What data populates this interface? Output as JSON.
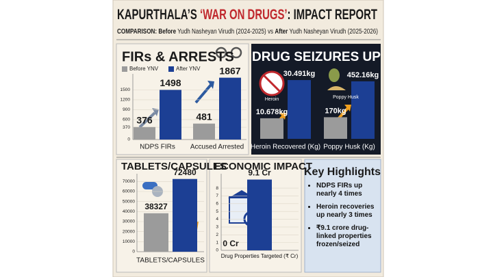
{
  "title_parts": [
    "KAPURTHALA’S ",
    "‘WAR ON DRUGS’",
    ": IMPACT REPORT"
  ],
  "subtitle_parts": [
    "COMPARISON:",
    " Before",
    " Yudh Nasheyan Virudh (2024-2025) vs ",
    "After",
    " Yudh Nasheyan Virudh (2025-2026)"
  ],
  "chart_data": [
    {
      "type": "bar",
      "title": "FIRs & ARRESTS",
      "categories": [
        "NDPS FIRs",
        "Accused Arrested"
      ],
      "series": [
        {
          "name": "Before YNV",
          "color": "#9b9b9b",
          "values": [
            376,
            481
          ]
        },
        {
          "name": "After YNV",
          "color": "#1c3f94",
          "values": [
            1498,
            1867
          ]
        }
      ],
      "ylim": [
        0,
        1900
      ],
      "yticks": [
        0,
        370,
        600,
        900,
        1200,
        1500
      ],
      "grid": true
    },
    {
      "type": "bar",
      "title": "DRUG SEIZURES UP",
      "colors": [
        "#9b9b9b",
        "#1c3f94"
      ],
      "groups": [
        {
          "category": "Heroin Recovered (Kg)",
          "icon_label": "Heroin",
          "ylim": [
            0,
            33
          ],
          "values": [
            10.678,
            30.491
          ],
          "value_labels": [
            "10.678kg",
            "30.491kg"
          ]
        },
        {
          "category": "Poppy Husk (Kg)",
          "icon_label": "Poppy Husk",
          "ylim": [
            0,
            500
          ],
          "values": [
            170,
            452.16
          ],
          "value_labels": [
            "170kg",
            "452.16kg"
          ]
        }
      ]
    },
    {
      "type": "bar",
      "title": "TABLETS/CAPSULES",
      "categories": [
        "TABLETS/CAPSULES"
      ],
      "series": [
        {
          "color": "#9b9b9b",
          "values": [
            38327
          ]
        },
        {
          "color": "#1c3f94",
          "values": [
            72480
          ]
        }
      ],
      "ylim": [
        0,
        75000
      ],
      "yticks": [
        0,
        10000,
        20000,
        30000,
        40000,
        50000,
        60000,
        70000
      ],
      "grid": true
    },
    {
      "type": "bar",
      "title": "ECONOMIC IMPACT",
      "categories": [
        "Drug Properties Targeted (₹ Cr)"
      ],
      "series": [
        {
          "color": "#9b9b9b",
          "values": [
            0
          ],
          "value_labels": [
            "0 Cr"
          ]
        },
        {
          "color": "#1c3f94",
          "values": [
            9.1
          ],
          "value_labels": [
            "9.1 Cr"
          ]
        }
      ],
      "ylim": [
        0,
        9.5
      ],
      "yticks": [
        0,
        1,
        2,
        3,
        4,
        5,
        6,
        7,
        8
      ],
      "grid": true
    }
  ],
  "highlights": {
    "title": "Key Highlights",
    "items": [
      "NDPS FIRs up nearly 4 times",
      "Heroin recoveries up nearly 3 times",
      "₹9.1 crore drug-linked properties frozen/seized"
    ]
  }
}
